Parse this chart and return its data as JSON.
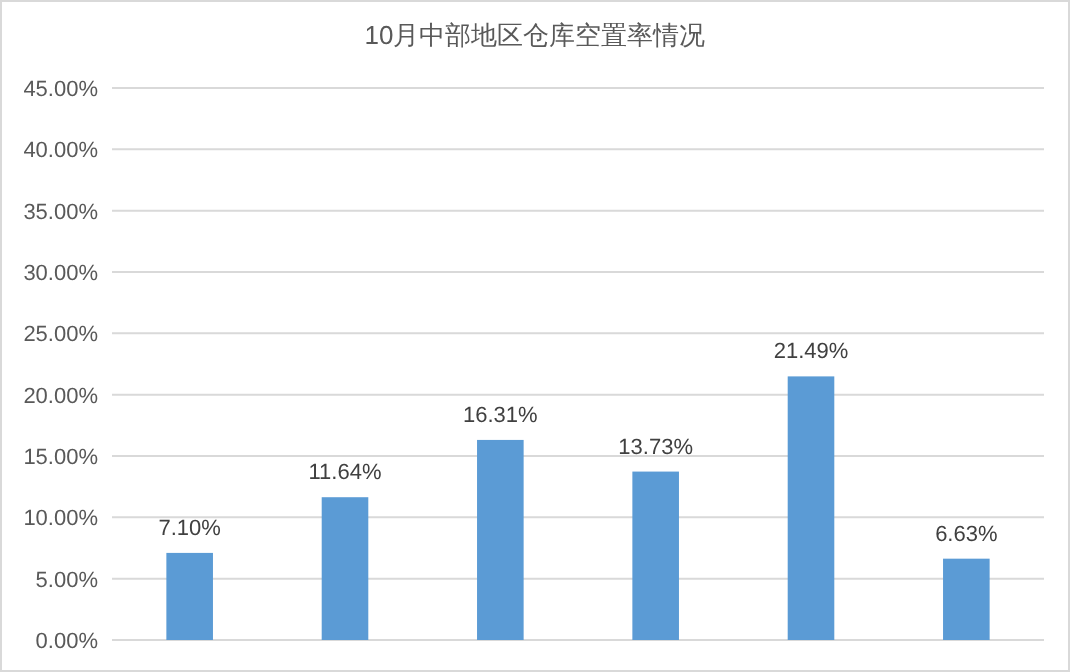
{
  "chart_data": {
    "type": "bar",
    "title": "10月中部地区仓库空置率情况",
    "categories": [
      null,
      null,
      null,
      null,
      null,
      null
    ],
    "values": [
      7.1,
      11.64,
      16.31,
      13.73,
      21.49,
      6.63
    ],
    "value_labels": [
      "7.10%",
      "11.64%",
      "16.31%",
      "13.73%",
      "21.49%",
      "6.63%"
    ],
    "color": "#5b9bd5",
    "ylim": [
      0,
      45
    ],
    "yticks": [
      {
        "value": 0,
        "label": "0.00%"
      },
      {
        "value": 5,
        "label": "5.00%"
      },
      {
        "value": 10,
        "label": "10.00%"
      },
      {
        "value": 15,
        "label": "15.00%"
      },
      {
        "value": 20,
        "label": "20.00%"
      },
      {
        "value": 25,
        "label": "25.00%"
      },
      {
        "value": 30,
        "label": "30.00%"
      },
      {
        "value": 35,
        "label": "35.00%"
      },
      {
        "value": 40,
        "label": "40.00%"
      },
      {
        "value": 45,
        "label": "45.00%"
      }
    ],
    "grid": "y"
  }
}
